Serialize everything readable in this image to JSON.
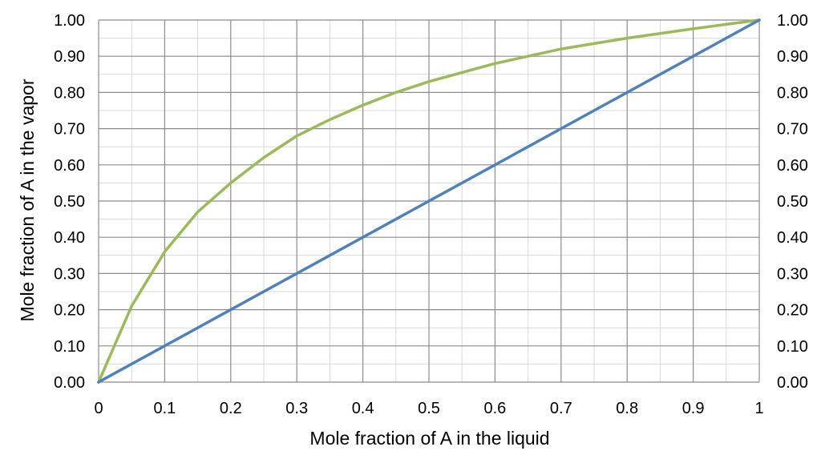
{
  "chart_data": {
    "type": "line",
    "title": "",
    "xlabel": "Mole fraction of A in the liquid",
    "ylabel": "Mole fraction of  A in the vapor",
    "xlim": [
      0,
      1
    ],
    "ylim": [
      0,
      1
    ],
    "x_ticks": [
      "0",
      "0.1",
      "0.2",
      "0.3",
      "0.4",
      "0.5",
      "0.6",
      "0.7",
      "0.8",
      "0.9",
      "1"
    ],
    "y_ticks": [
      "0.00",
      "0.10",
      "0.20",
      "0.30",
      "0.40",
      "0.50",
      "0.60",
      "0.70",
      "0.80",
      "0.90",
      "1.00"
    ],
    "grid": true,
    "minor_grid": true,
    "legend": "none",
    "series": [
      {
        "color": "#9bbb59",
        "x": [
          0,
          0.05,
          0.1,
          0.15,
          0.2,
          0.25,
          0.3,
          0.35,
          0.4,
          0.45,
          0.5,
          0.55,
          0.6,
          0.65,
          0.7,
          0.75,
          0.8,
          0.85,
          0.9,
          0.95,
          1.0
        ],
        "y": [
          0,
          0.21,
          0.36,
          0.47,
          0.55,
          0.62,
          0.68,
          0.725,
          0.765,
          0.8,
          0.83,
          0.855,
          0.88,
          0.9,
          0.92,
          0.935,
          0.95,
          0.963,
          0.976,
          0.988,
          1.0
        ]
      },
      {
        "color": "#4f81bd",
        "x": [
          0,
          1
        ],
        "y": [
          0,
          1
        ]
      }
    ]
  }
}
